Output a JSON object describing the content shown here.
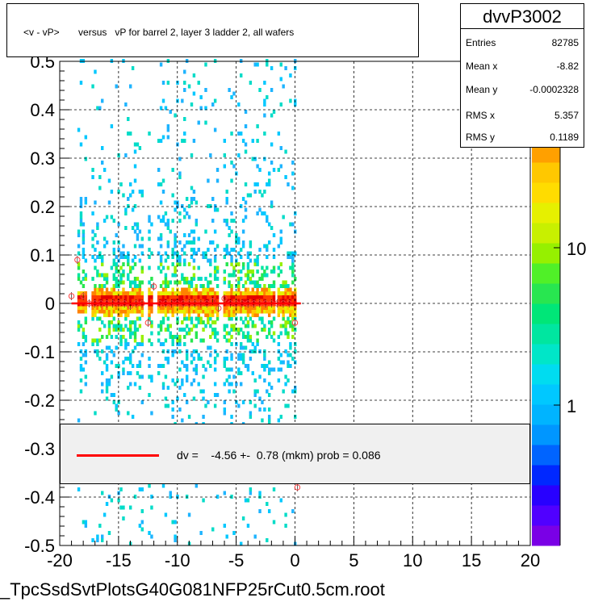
{
  "chart_data": {
    "type": "heatmap",
    "title": "<v - vP>       versus   vP for barrel 2, layer 3 ladder 2, all wafers",
    "xlim": [
      -20,
      20
    ],
    "ylim": [
      -0.5,
      0.5
    ],
    "x_ticks": [
      "-20",
      "-15",
      "-10",
      "-5",
      "0",
      "5",
      "10",
      "15",
      "20"
    ],
    "y_ticks": [
      "0.5",
      "0.4",
      "0.3",
      "0.2",
      "0.1",
      "0",
      "-0.1",
      "-0.2",
      "-0.3",
      "-0.4",
      "-0.5"
    ],
    "colorbar_ticks": [
      "10",
      "1"
    ],
    "colorbar_partial_label": "0",
    "log_color_scale": true,
    "grid": true,
    "populated_x_range": [
      -18.5,
      0
    ],
    "peak_band_y": 0,
    "profile_points": [
      {
        "x": -19,
        "y": 0.015
      },
      {
        "x": -18.5,
        "y": 0.09
      },
      {
        "x": -18,
        "y": 0.015
      },
      {
        "x": -17.5,
        "y": 0.0
      },
      {
        "x": -17,
        "y": 0.0
      },
      {
        "x": -16.5,
        "y": 0.0
      },
      {
        "x": -16,
        "y": 0.0
      },
      {
        "x": -15.5,
        "y": 0.0
      },
      {
        "x": -15,
        "y": 0.0
      },
      {
        "x": -14.5,
        "y": 0.0
      },
      {
        "x": -14,
        "y": -0.005
      },
      {
        "x": -13.5,
        "y": 0.0
      },
      {
        "x": -13,
        "y": 0.0
      },
      {
        "x": -12.5,
        "y": -0.04
      },
      {
        "x": -12,
        "y": 0.035
      },
      {
        "x": -11.5,
        "y": 0.0
      },
      {
        "x": -11,
        "y": 0.0
      },
      {
        "x": -10.5,
        "y": 0.0
      },
      {
        "x": -10,
        "y": 0.0
      },
      {
        "x": -9.5,
        "y": 0.0
      },
      {
        "x": -9,
        "y": 0.0
      },
      {
        "x": -8.5,
        "y": 0.0
      },
      {
        "x": -8,
        "y": 0.0
      },
      {
        "x": -7.5,
        "y": 0.0
      },
      {
        "x": -7,
        "y": 0.005
      },
      {
        "x": -6.5,
        "y": -0.01
      },
      {
        "x": -6,
        "y": 0.01
      },
      {
        "x": -5.5,
        "y": 0.0
      },
      {
        "x": -5,
        "y": 0.0
      },
      {
        "x": -4.5,
        "y": 0.0
      },
      {
        "x": -4,
        "y": 0.0
      },
      {
        "x": -3.5,
        "y": 0.0
      },
      {
        "x": -3,
        "y": 0.0
      },
      {
        "x": -2.5,
        "y": 0.0
      },
      {
        "x": -2,
        "y": 0.0
      },
      {
        "x": -1.5,
        "y": 0.0
      },
      {
        "x": -1,
        "y": 0.0
      },
      {
        "x": -0.5,
        "y": 0.0
      },
      {
        "x": 0,
        "y": -0.04
      },
      {
        "x": 0.2,
        "y": -0.38
      }
    ],
    "fit_line": {
      "x0": -19,
      "x1": 0.5,
      "y": 0.0
    },
    "stats": {
      "name": "dvvP3002",
      "rows": [
        {
          "label": "Entries",
          "value": "82785"
        },
        {
          "label": "Mean x",
          "value": "-8.82"
        },
        {
          "label": "Mean y",
          "value": "-0.0002328"
        },
        {
          "label": "RMS x",
          "value": "5.357"
        },
        {
          "label": "RMS y",
          "value": "0.1189"
        }
      ]
    },
    "legend_text": "dv =    -4.56 +-  0.78 (mkm) prob = 0.086",
    "footer": "_TpcSsdSvtPlotsG40G081NFP25rCut0.5cm.root",
    "colors": {
      "fit": "#ff0000",
      "marker": "#ff4040"
    }
  }
}
